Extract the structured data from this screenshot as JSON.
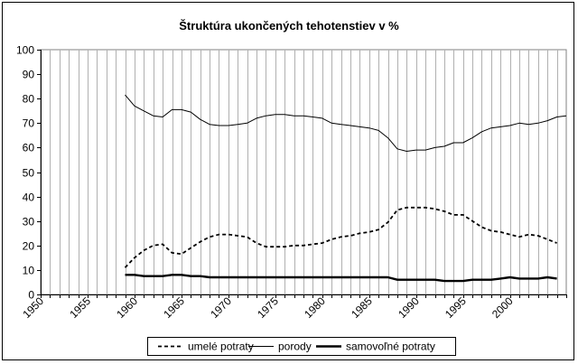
{
  "chart_data": {
    "type": "line",
    "title": "Štruktúra ukončených tehotenstiev v %",
    "xlabel": "",
    "ylabel": "",
    "xlim": [
      1950,
      2006
    ],
    "ylim": [
      0,
      100
    ],
    "y_ticks": [
      0,
      10,
      20,
      30,
      40,
      50,
      60,
      70,
      80,
      90,
      100
    ],
    "x_ticks": [
      1950,
      1955,
      1960,
      1965,
      1970,
      1975,
      1980,
      1985,
      1990,
      1995,
      2000
    ],
    "grid": "vertical",
    "legend_position": "bottom",
    "series": [
      {
        "name": "umelé potraty",
        "style": "dashed",
        "color": "#000000",
        "x": [
          1959,
          1960,
          1961,
          1962,
          1963,
          1964,
          1965,
          1966,
          1967,
          1968,
          1969,
          1970,
          1971,
          1972,
          1973,
          1974,
          1975,
          1976,
          1977,
          1978,
          1979,
          1980,
          1981,
          1982,
          1983,
          1984,
          1985,
          1986,
          1987,
          1988,
          1989,
          1990,
          1991,
          1992,
          1993,
          1994,
          1995,
          1996,
          1997,
          1998,
          1999,
          2000,
          2001,
          2002,
          2003,
          2004,
          2005
        ],
        "values": [
          11,
          15,
          18,
          20,
          20.5,
          17,
          16.5,
          19,
          21.5,
          23.5,
          24.5,
          24.5,
          24,
          23.5,
          21,
          19.5,
          19.5,
          19.5,
          20,
          20,
          20.5,
          21,
          22.5,
          23.5,
          24,
          25,
          25.5,
          26.5,
          29.5,
          34.5,
          35.5,
          35.5,
          35.5,
          35,
          34,
          32.5,
          32.5,
          30,
          27.5,
          26,
          25.5,
          24.5,
          23.5,
          24.5,
          24,
          22.5,
          21
        ]
      },
      {
        "name": "porody",
        "style": "solid-thin",
        "color": "#000000",
        "x": [
          1959,
          1960,
          1961,
          1962,
          1963,
          1964,
          1965,
          1966,
          1967,
          1968,
          1969,
          1970,
          1971,
          1972,
          1973,
          1974,
          1975,
          1976,
          1977,
          1978,
          1979,
          1980,
          1981,
          1982,
          1983,
          1984,
          1985,
          1986,
          1987,
          1988,
          1989,
          1990,
          1991,
          1992,
          1993,
          1994,
          1995,
          1996,
          1997,
          1998,
          1999,
          2000,
          2001,
          2002,
          2003,
          2004,
          2005,
          2006
        ],
        "values": [
          81.5,
          77,
          75,
          73,
          72.5,
          75.5,
          75.5,
          74.5,
          71.5,
          69.5,
          69,
          69,
          69.5,
          70,
          72,
          73,
          73.5,
          73.5,
          73,
          73,
          72.5,
          72,
          70,
          69.5,
          69,
          68.5,
          68,
          67,
          64,
          59.5,
          58.5,
          59,
          59,
          60,
          60.5,
          62,
          62,
          64,
          66.5,
          68,
          68.5,
          69,
          70,
          69.5,
          70,
          71,
          72.5,
          73
        ]
      },
      {
        "name": "samovoľné potraty",
        "style": "solid-thick",
        "color": "#000000",
        "x": [
          1959,
          1960,
          1961,
          1962,
          1963,
          1964,
          1965,
          1966,
          1967,
          1968,
          1969,
          1970,
          1971,
          1972,
          1973,
          1974,
          1975,
          1976,
          1977,
          1978,
          1979,
          1980,
          1981,
          1982,
          1983,
          1984,
          1985,
          1986,
          1987,
          1988,
          1989,
          1990,
          1991,
          1992,
          1993,
          1994,
          1995,
          1996,
          1997,
          1998,
          1999,
          2000,
          2001,
          2002,
          2003,
          2004,
          2005
        ],
        "values": [
          8,
          8,
          7.5,
          7.5,
          7.5,
          8,
          8,
          7.5,
          7.5,
          7,
          7,
          7,
          7,
          7,
          7,
          7,
          7,
          7,
          7,
          7,
          7,
          7,
          7,
          7,
          7,
          7,
          7,
          7,
          7,
          6,
          6,
          6,
          6,
          6,
          5.5,
          5.5,
          5.5,
          6,
          6,
          6,
          6.5,
          7,
          6.5,
          6.5,
          6.5,
          7,
          6.5
        ]
      }
    ]
  }
}
